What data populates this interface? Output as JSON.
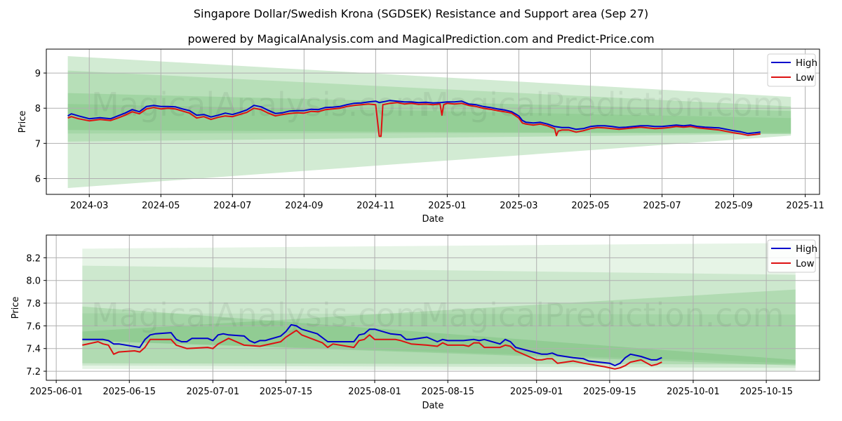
{
  "title": "Singapore Dollar/Swedish Krona (SGDSEK) Resistance and Support area (Sep 27)",
  "subtitle": "powered by MagicalAnalysis.com and MagicalPrediction.com and Predict-Price.com",
  "watermarks": [
    "MagicalAnalysis.com",
    "MagicalPrediction.com"
  ],
  "colors": {
    "high": "#0000cc",
    "low": "#dd1111",
    "band": "#4caf50"
  },
  "chart_data": [
    {
      "type": "line",
      "name": "overview",
      "xlabel": "Date",
      "ylabel": "Price",
      "x_unit": "months since 2024-01-01",
      "xlim": [
        0.8,
        22.4
      ],
      "ylim": [
        5.55,
        9.68
      ],
      "grid": true,
      "legend": {
        "position": "top-right",
        "entries": [
          "High",
          "Low"
        ]
      },
      "xticks": [
        {
          "v": 2,
          "label": "2024-03"
        },
        {
          "v": 4,
          "label": "2024-05"
        },
        {
          "v": 6,
          "label": "2024-07"
        },
        {
          "v": 8,
          "label": "2024-09"
        },
        {
          "v": 10,
          "label": "2024-11"
        },
        {
          "v": 12,
          "label": "2025-01"
        },
        {
          "v": 14,
          "label": "2025-03"
        },
        {
          "v": 16,
          "label": "2025-05"
        },
        {
          "v": 18,
          "label": "2025-07"
        },
        {
          "v": 20,
          "label": "2025-09"
        },
        {
          "v": 22,
          "label": "2025-11"
        }
      ],
      "yticks": [
        {
          "v": 6,
          "label": "6"
        },
        {
          "v": 7,
          "label": "7"
        },
        {
          "v": 8,
          "label": "8"
        },
        {
          "v": 9,
          "label": "9"
        }
      ],
      "bands": [
        {
          "x": [
            1.4,
            21.6
          ],
          "top": [
            9.48,
            8.32
          ],
          "bottom": [
            5.73,
            7.22
          ],
          "opacity": 0.25
        },
        {
          "x": [
            1.4,
            21.6
          ],
          "top": [
            9.07,
            8.05
          ],
          "bottom": [
            7.05,
            7.27
          ],
          "opacity": 0.2
        },
        {
          "x": [
            1.4,
            21.6
          ],
          "top": [
            8.43,
            7.92
          ],
          "bottom": [
            7.38,
            7.27
          ],
          "opacity": 0.2
        },
        {
          "x": [
            1.4,
            21.6
          ],
          "top": [
            8.12,
            7.72
          ],
          "bottom": [
            7.28,
            7.3
          ],
          "opacity": 0.15
        }
      ],
      "series": [
        {
          "name": "High",
          "x": [
            1.4,
            1.5,
            1.7,
            2.0,
            2.3,
            2.6,
            2.8,
            3.0,
            3.2,
            3.4,
            3.6,
            3.8,
            4.0,
            4.2,
            4.4,
            4.6,
            4.8,
            5.0,
            5.2,
            5.4,
            5.6,
            5.8,
            6.0,
            6.2,
            6.4,
            6.6,
            6.8,
            7.0,
            7.2,
            7.4,
            7.6,
            7.8,
            8.0,
            8.2,
            8.4,
            8.6,
            8.8,
            9.0,
            9.2,
            9.4,
            9.6,
            9.8,
            10.0,
            10.1,
            10.2,
            10.4,
            10.6,
            10.8,
            11.0,
            11.2,
            11.4,
            11.6,
            11.8,
            12.0,
            12.2,
            12.4,
            12.6,
            12.8,
            13.0,
            13.2,
            13.4,
            13.6,
            13.8,
            14.0,
            14.1,
            14.2,
            14.4,
            14.6,
            14.8,
            15.0,
            15.2,
            15.4,
            15.6,
            15.8,
            16.0,
            16.2,
            16.4,
            16.6,
            16.8,
            17.0,
            17.2,
            17.4,
            17.6,
            17.8,
            18.0,
            18.2,
            18.4,
            18.6,
            18.8,
            19.0,
            19.2,
            19.4,
            19.6,
            19.8,
            20.0,
            20.2,
            20.4,
            20.6,
            20.75
          ],
          "values": [
            7.78,
            7.84,
            7.78,
            7.7,
            7.73,
            7.7,
            7.78,
            7.86,
            7.96,
            7.9,
            8.05,
            8.08,
            8.05,
            8.05,
            8.04,
            7.98,
            7.93,
            7.8,
            7.82,
            7.75,
            7.8,
            7.86,
            7.82,
            7.88,
            7.95,
            8.08,
            8.04,
            7.94,
            7.85,
            7.87,
            7.92,
            7.93,
            7.93,
            7.97,
            7.96,
            8.02,
            8.03,
            8.05,
            8.1,
            8.14,
            8.15,
            8.18,
            8.2,
            8.16,
            8.18,
            8.22,
            8.2,
            8.18,
            8.18,
            8.16,
            8.17,
            8.15,
            8.16,
            8.18,
            8.18,
            8.2,
            8.12,
            8.1,
            8.05,
            8.02,
            7.98,
            7.95,
            7.9,
            7.78,
            7.65,
            7.6,
            7.58,
            7.6,
            7.55,
            7.48,
            7.45,
            7.45,
            7.4,
            7.42,
            7.48,
            7.5,
            7.5,
            7.48,
            7.45,
            7.46,
            7.48,
            7.5,
            7.5,
            7.48,
            7.48,
            7.5,
            7.52,
            7.5,
            7.52,
            7.48,
            7.46,
            7.45,
            7.44,
            7.4,
            7.36,
            7.33,
            7.28,
            7.3,
            7.32
          ]
        },
        {
          "name": "Low",
          "x": [
            1.4,
            1.5,
            1.7,
            2.0,
            2.3,
            2.6,
            2.8,
            3.0,
            3.2,
            3.4,
            3.6,
            3.8,
            4.0,
            4.2,
            4.4,
            4.6,
            4.8,
            5.0,
            5.2,
            5.4,
            5.6,
            5.8,
            6.0,
            6.2,
            6.4,
            6.6,
            6.8,
            7.0,
            7.2,
            7.4,
            7.6,
            7.8,
            8.0,
            8.2,
            8.4,
            8.6,
            8.8,
            9.0,
            9.2,
            9.4,
            9.6,
            9.8,
            10.0,
            10.1,
            10.15,
            10.2,
            10.4,
            10.6,
            10.8,
            11.0,
            11.2,
            11.4,
            11.6,
            11.8,
            11.85,
            11.9,
            12.0,
            12.2,
            12.4,
            12.6,
            12.8,
            13.0,
            13.2,
            13.4,
            13.6,
            13.8,
            14.0,
            14.1,
            14.2,
            14.4,
            14.6,
            14.8,
            15.0,
            15.05,
            15.1,
            15.2,
            15.4,
            15.6,
            15.8,
            16.0,
            16.2,
            16.4,
            16.6,
            16.8,
            17.0,
            17.2,
            17.4,
            17.6,
            17.8,
            18.0,
            18.2,
            18.4,
            18.6,
            18.8,
            19.0,
            19.2,
            19.4,
            19.6,
            19.8,
            20.0,
            20.2,
            20.4,
            20.6,
            20.75
          ],
          "values": [
            7.72,
            7.76,
            7.7,
            7.64,
            7.68,
            7.65,
            7.72,
            7.8,
            7.9,
            7.84,
            7.98,
            8.02,
            7.98,
            8.0,
            7.98,
            7.92,
            7.86,
            7.72,
            7.76,
            7.68,
            7.74,
            7.78,
            7.76,
            7.82,
            7.88,
            8.0,
            7.96,
            7.86,
            7.78,
            7.82,
            7.85,
            7.87,
            7.86,
            7.91,
            7.9,
            7.96,
            7.98,
            8.0,
            8.05,
            8.08,
            8.1,
            8.12,
            8.1,
            7.2,
            7.2,
            8.1,
            8.14,
            8.16,
            8.12,
            8.14,
            8.11,
            8.12,
            8.1,
            8.12,
            7.8,
            8.1,
            8.14,
            8.12,
            8.14,
            8.08,
            8.05,
            8.0,
            7.97,
            7.93,
            7.9,
            7.86,
            7.72,
            7.58,
            7.55,
            7.52,
            7.55,
            7.5,
            7.42,
            7.22,
            7.35,
            7.38,
            7.38,
            7.32,
            7.36,
            7.42,
            7.45,
            7.44,
            7.42,
            7.4,
            7.42,
            7.44,
            7.46,
            7.44,
            7.42,
            7.43,
            7.45,
            7.48,
            7.46,
            7.48,
            7.44,
            7.42,
            7.4,
            7.38,
            7.34,
            7.3,
            7.27,
            7.23,
            7.25,
            7.27
          ]
        }
      ]
    },
    {
      "type": "line",
      "name": "zoomed",
      "xlabel": "Date",
      "ylabel": "Price",
      "x_unit": "days since 2025-06-01",
      "xlim": [
        -1.9,
        146.2
      ],
      "ylim": [
        7.12,
        8.4
      ],
      "grid": true,
      "legend": {
        "position": "top-right",
        "entries": [
          "High",
          "Low"
        ]
      },
      "xticks": [
        {
          "v": 0,
          "label": "2025-06-01"
        },
        {
          "v": 14,
          "label": "2025-06-15"
        },
        {
          "v": 30,
          "label": "2025-07-01"
        },
        {
          "v": 44,
          "label": "2025-07-15"
        },
        {
          "v": 61,
          "label": "2025-08-01"
        },
        {
          "v": 75,
          "label": "2025-08-15"
        },
        {
          "v": 92,
          "label": "2025-09-01"
        },
        {
          "v": 106,
          "label": "2025-09-15"
        },
        {
          "v": 122,
          "label": "2025-10-01"
        },
        {
          "v": 136,
          "label": "2025-10-15"
        }
      ],
      "yticks": [
        {
          "v": 7.2,
          "label": "7.2"
        },
        {
          "v": 7.4,
          "label": "7.4"
        },
        {
          "v": 7.6,
          "label": "7.6"
        },
        {
          "v": 7.8,
          "label": "7.8"
        },
        {
          "v": 8.0,
          "label": "8.0"
        },
        {
          "v": 8.2,
          "label": "8.2"
        }
      ],
      "bands": [
        {
          "x": [
            5,
            141.6
          ],
          "top": [
            8.28,
            8.33
          ],
          "bottom": [
            7.22,
            7.2
          ],
          "opacity": 0.14
        },
        {
          "x": [
            5,
            141.6
          ],
          "top": [
            8.13,
            8.05
          ],
          "bottom": [
            7.25,
            7.23
          ],
          "opacity": 0.16
        },
        {
          "x": [
            5,
            141.6
          ],
          "top": [
            7.77,
            7.3
          ],
          "bottom": [
            7.47,
            7.25
          ],
          "opacity": 0.22
        },
        {
          "x": [
            5,
            141.6
          ],
          "top": [
            7.55,
            7.92
          ],
          "bottom": [
            7.27,
            7.26
          ],
          "opacity": 0.22
        },
        {
          "x": [
            5,
            141.6
          ],
          "top": [
            7.71,
            7.7
          ],
          "bottom": [
            7.47,
            7.27
          ],
          "opacity": 0.12
        }
      ],
      "series": [
        {
          "name": "High",
          "x": [
            5,
            9,
            10,
            11,
            12,
            16,
            17,
            18,
            19,
            22,
            23,
            24,
            25,
            26,
            29,
            30,
            31,
            32,
            33,
            36,
            37,
            38,
            39,
            40,
            43,
            44,
            45,
            46,
            47,
            50,
            52,
            57,
            58,
            59,
            60,
            61,
            64,
            66,
            67,
            68,
            71,
            73,
            74,
            75,
            78,
            80,
            81,
            82,
            85,
            86,
            87,
            88,
            93,
            94,
            95,
            96,
            99,
            101,
            102,
            106,
            107,
            108,
            109,
            110,
            112,
            114,
            115,
            116
          ],
          "values": [
            7.48,
            7.48,
            7.47,
            7.44,
            7.44,
            7.41,
            7.48,
            7.52,
            7.53,
            7.54,
            7.48,
            7.46,
            7.46,
            7.49,
            7.49,
            7.47,
            7.52,
            7.53,
            7.52,
            7.51,
            7.47,
            7.45,
            7.47,
            7.47,
            7.51,
            7.55,
            7.61,
            7.6,
            7.57,
            7.53,
            7.46,
            7.46,
            7.52,
            7.53,
            7.57,
            7.57,
            7.53,
            7.52,
            7.48,
            7.48,
            7.5,
            7.46,
            7.48,
            7.47,
            7.47,
            7.48,
            7.47,
            7.48,
            7.44,
            7.48,
            7.46,
            7.41,
            7.35,
            7.35,
            7.36,
            7.34,
            7.32,
            7.31,
            7.29,
            7.27,
            7.25,
            7.27,
            7.32,
            7.35,
            7.33,
            7.3,
            7.3,
            7.32
          ]
        },
        {
          "name": "Low",
          "x": [
            5,
            8,
            9,
            10,
            11,
            12,
            15,
            16,
            17,
            18,
            22,
            23,
            25,
            29,
            30,
            31,
            33,
            36,
            39,
            43,
            44,
            46,
            47,
            51,
            52,
            53,
            57,
            58,
            59,
            60,
            61,
            65,
            66,
            68,
            71,
            73,
            74,
            75,
            78,
            79,
            80,
            81,
            82,
            85,
            86,
            87,
            88,
            92,
            93,
            94,
            95,
            96,
            99,
            101,
            105,
            107,
            108,
            109,
            110,
            112,
            114,
            115,
            116
          ],
          "values": [
            7.43,
            7.46,
            7.44,
            7.43,
            7.35,
            7.37,
            7.38,
            7.37,
            7.41,
            7.48,
            7.48,
            7.43,
            7.4,
            7.41,
            7.4,
            7.44,
            7.49,
            7.43,
            7.42,
            7.46,
            7.5,
            7.56,
            7.52,
            7.45,
            7.41,
            7.44,
            7.41,
            7.47,
            7.48,
            7.52,
            7.48,
            7.48,
            7.47,
            7.44,
            7.43,
            7.42,
            7.45,
            7.43,
            7.43,
            7.42,
            7.45,
            7.45,
            7.41,
            7.41,
            7.43,
            7.42,
            7.38,
            7.3,
            7.3,
            7.31,
            7.31,
            7.27,
            7.29,
            7.27,
            7.24,
            7.22,
            7.23,
            7.25,
            7.28,
            7.3,
            7.25,
            7.26,
            7.28
          ]
        }
      ]
    }
  ]
}
